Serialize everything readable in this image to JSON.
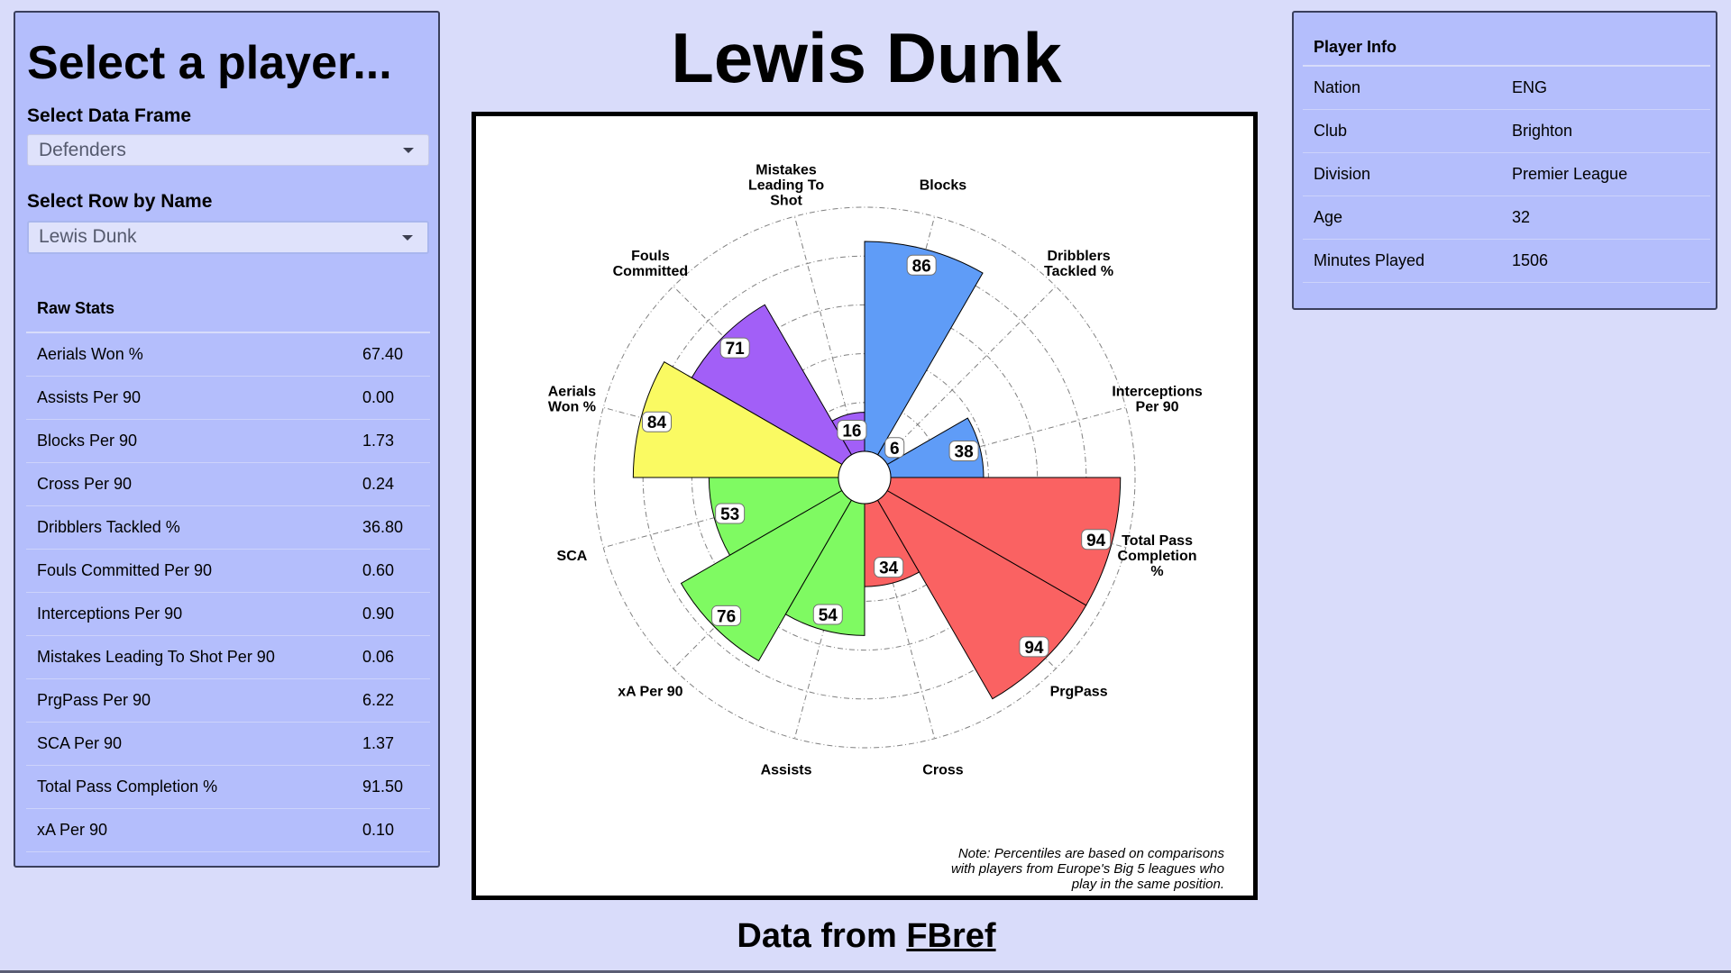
{
  "sidebar": {
    "heading": "Select a player...",
    "frame_label": "Select Data Frame",
    "frame_value": "Defenders",
    "row_label": "Select Row by Name",
    "row_value": "Lewis Dunk",
    "raw_stats_header": "Raw Stats",
    "raw_stats": [
      {
        "name": "Aerials Won %",
        "value": "67.40"
      },
      {
        "name": "Assists Per 90",
        "value": "0.00"
      },
      {
        "name": "Blocks Per 90",
        "value": "1.73"
      },
      {
        "name": "Cross Per 90",
        "value": "0.24"
      },
      {
        "name": "Dribblers Tackled %",
        "value": "36.80"
      },
      {
        "name": "Fouls Committed Per 90",
        "value": "0.60"
      },
      {
        "name": "Interceptions Per 90",
        "value": "0.90"
      },
      {
        "name": "Mistakes Leading To Shot Per 90",
        "value": "0.06"
      },
      {
        "name": "PrgPass Per 90",
        "value": "6.22"
      },
      {
        "name": "SCA Per 90",
        "value": "1.37"
      },
      {
        "name": "Total Pass Completion %",
        "value": "91.50"
      },
      {
        "name": "xA Per 90",
        "value": "0.10"
      }
    ]
  },
  "main": {
    "title": "Lewis Dunk",
    "footer_prefix": "Data from",
    "footer_link": "FBref"
  },
  "player_info": {
    "header": "Player Info",
    "rows": [
      {
        "key": "Nation",
        "value": "ENG"
      },
      {
        "key": "Club",
        "value": "Brighton"
      },
      {
        "key": "Division",
        "value": "Premier League"
      },
      {
        "key": "Age",
        "value": "32"
      },
      {
        "key": "Minutes Played",
        "value": "1506"
      }
    ]
  },
  "chart_data": {
    "type": "polar-bar",
    "rlim": [
      0,
      100
    ],
    "note": [
      "Note: Percentiles are based on comparisons",
      "with players from Europe's Big 5 leagues who",
      "play in the same position."
    ],
    "categories": [
      {
        "label": [
          "Interceptions",
          "Per 90"
        ],
        "value": 38,
        "color": "#5f9cf7"
      },
      {
        "label": [
          "Dribblers",
          "Tackled %"
        ],
        "value": 6,
        "color": "#5f9cf7"
      },
      {
        "label": [
          "Blocks"
        ],
        "value": 86,
        "color": "#5f9cf7"
      },
      {
        "label": [
          "Mistakes",
          "Leading To",
          "Shot"
        ],
        "value": 16,
        "color": "#a25ff7"
      },
      {
        "label": [
          "Fouls",
          "Committed"
        ],
        "value": 71,
        "color": "#a25ff7"
      },
      {
        "label": [
          "Aerials",
          "Won %"
        ],
        "value": 84,
        "color": "#fafa62"
      },
      {
        "label": [
          "SCA"
        ],
        "value": 53,
        "color": "#7ffa62"
      },
      {
        "label": [
          "xA Per 90"
        ],
        "value": 76,
        "color": "#7ffa62"
      },
      {
        "label": [
          "Assists"
        ],
        "value": 54,
        "color": "#7ffa62"
      },
      {
        "label": [
          "Cross"
        ],
        "value": 34,
        "color": "#fa6262"
      },
      {
        "label": [
          "PrgPass"
        ],
        "value": 94,
        "color": "#fa6262"
      },
      {
        "label": [
          "Total Pass",
          "Completion",
          "%"
        ],
        "value": 94,
        "color": "#fa6262"
      }
    ]
  }
}
